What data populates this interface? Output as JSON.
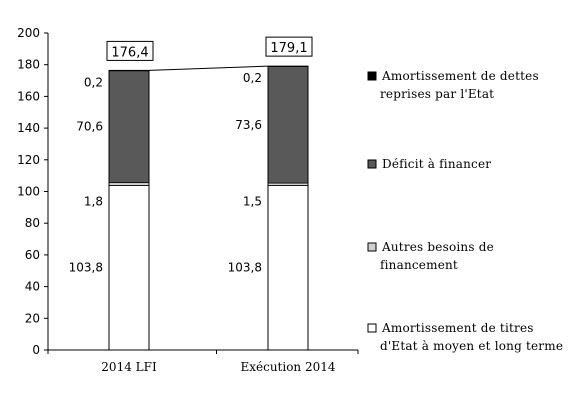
{
  "chart_data": {
    "type": "bar",
    "stacked": true,
    "categories": [
      "2014 LFI",
      "Exécution 2014"
    ],
    "series": [
      {
        "name": "Amortissement de titres d'Etat à moyen et long terme",
        "values": [
          103.8,
          103.8
        ],
        "labels": [
          "103,8",
          "103,8"
        ],
        "color": "#ffffff"
      },
      {
        "name": "Autres besoins de financement",
        "values": [
          1.8,
          1.5
        ],
        "labels": [
          "1,8",
          "1,5"
        ],
        "color": "#d0d0d0"
      },
      {
        "name": "Déficit à financer",
        "values": [
          70.6,
          73.6
        ],
        "labels": [
          "70,6",
          "73,6"
        ],
        "color": "#595959"
      },
      {
        "name": "Amortissement de dettes reprises par l'Etat",
        "values": [
          0.2,
          0.2
        ],
        "labels": [
          "0,2",
          "0,2"
        ],
        "color": "#000000"
      }
    ],
    "totals": [
      "176,4",
      "179,1"
    ],
    "ylim": [
      0,
      200
    ],
    "yticks": [
      "0",
      "20",
      "40",
      "60",
      "80",
      "100",
      "120",
      "140",
      "160",
      "180",
      "200"
    ],
    "legend": {
      "position": "right",
      "entries": [
        {
          "series": 3,
          "lines": [
            "Amortissement de dettes",
            "reprises par l'Etat"
          ]
        },
        {
          "series": 2,
          "lines": [
            "Déficit à financer"
          ]
        },
        {
          "series": 1,
          "lines": [
            "Autres besoins de",
            "financement"
          ]
        },
        {
          "series": 0,
          "lines": [
            "Amortissement de titres",
            "d'Etat à moyen et long terme"
          ]
        }
      ]
    },
    "grid": false
  }
}
